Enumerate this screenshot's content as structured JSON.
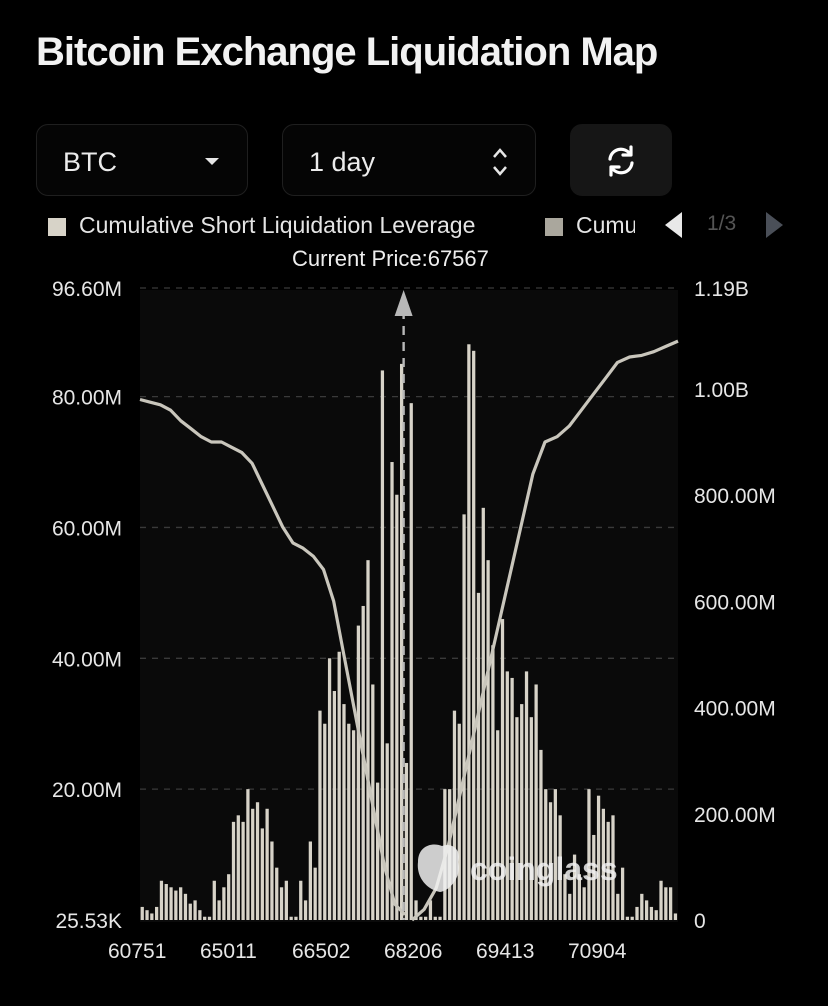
{
  "title": "Bitcoin Exchange Liquidation Map",
  "controls": {
    "coin": "BTC",
    "range": "1 day"
  },
  "legend": {
    "items": [
      "Cumulative Short Liquidation Leverage",
      "Cumu"
    ],
    "page": "1/3"
  },
  "colors": {
    "background": "#000000",
    "bars": "#d7d3c8",
    "line": "#c9c6bc",
    "grid": "#3a3a3a",
    "text": "#e6e6e6"
  },
  "chart_data": {
    "type": "bar",
    "annotation": "Current Price:67567",
    "current_price": 67567,
    "watermark": "coinglass",
    "x_ticks": [
      "60751",
      "65011",
      "66502",
      "68206",
      "69413",
      "70904"
    ],
    "y_left_ticks": [
      "96.60M",
      "80.00M",
      "60.00M",
      "40.00M",
      "20.00M",
      "25.53K"
    ],
    "y_right_ticks": [
      "1.19B",
      "1.00B",
      "800.00M",
      "600.00M",
      "400.00M",
      "200.00M",
      "0"
    ],
    "y_left_range": [
      0,
      96.6
    ],
    "y_left_unit": "M",
    "y_right_range": [
      0,
      1.19
    ],
    "y_right_unit": "B",
    "leverage_bars_M": [
      2,
      1.5,
      1,
      2,
      6,
      5.5,
      5,
      4.5,
      5,
      4,
      2.5,
      3,
      1.5,
      0.5,
      0.5,
      6,
      3,
      5,
      7,
      15,
      16,
      15,
      20,
      17,
      18,
      14,
      17,
      12,
      8,
      5,
      6,
      0.5,
      0.5,
      6,
      3,
      12,
      8,
      32,
      30,
      40,
      35,
      41,
      33,
      30,
      29,
      45,
      48,
      55,
      36,
      21,
      84,
      27,
      70,
      65,
      85,
      24,
      79,
      3,
      0.5,
      0.5,
      3,
      0.5,
      0.5,
      20,
      20,
      32,
      30,
      62,
      88,
      87,
      50,
      63,
      55,
      42,
      29,
      46,
      38,
      37,
      31,
      33,
      38,
      31,
      36,
      26,
      20,
      18,
      20,
      16,
      7,
      4,
      10,
      7,
      5,
      20,
      13,
      19,
      17,
      15,
      16,
      4,
      8,
      0.5,
      0.5,
      2,
      4,
      3,
      2,
      1.5,
      6,
      5,
      5,
      1
    ],
    "short_cumulative_B": [
      0.98,
      0.975,
      0.97,
      0.96,
      0.94,
      0.925,
      0.91,
      0.9,
      0.9,
      0.89,
      0.88,
      0.86,
      0.82,
      0.78,
      0.74,
      0.71,
      0.7,
      0.685,
      0.66,
      0.6,
      0.5,
      0.4,
      0.3,
      0.2,
      0.1,
      0.03,
      0.01
    ],
    "long_cumulative_B": [
      0.0,
      0.02,
      0.06,
      0.14,
      0.24,
      0.34,
      0.44,
      0.54,
      0.64,
      0.74,
      0.84,
      0.9,
      0.91,
      0.93,
      0.96,
      0.99,
      1.02,
      1.05,
      1.06,
      1.063,
      1.07,
      1.08,
      1.09
    ]
  }
}
